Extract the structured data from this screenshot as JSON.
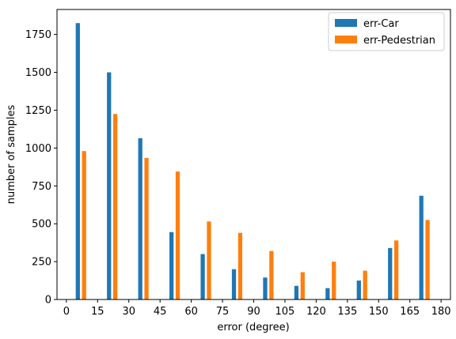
{
  "chart_data": {
    "type": "bar",
    "xlabel": "error (degree)",
    "ylabel": "number of samples",
    "xlim": [
      -4.5,
      184.5
    ],
    "ylim": [
      0,
      1915
    ],
    "xticks": [
      0,
      15,
      30,
      45,
      60,
      75,
      90,
      105,
      120,
      135,
      150,
      165,
      180
    ],
    "yticks": [
      0,
      250,
      500,
      750,
      1000,
      1250,
      1500,
      1750
    ],
    "bar_width": 2,
    "legend_position": "top-right",
    "series": [
      {
        "name": "err-Car",
        "color": "#1f77b4",
        "x": [
          5.5,
          20.5,
          35.5,
          50.5,
          65.5,
          80.5,
          95.5,
          110.5,
          125.5,
          140.5,
          155.5,
          170.5
        ],
        "values": [
          1825,
          1500,
          1065,
          445,
          300,
          200,
          145,
          90,
          75,
          125,
          340,
          685
        ]
      },
      {
        "name": "err-Pedestrian",
        "color": "#ff7f0e",
        "x": [
          8.5,
          23.5,
          38.5,
          53.5,
          68.5,
          83.5,
          98.5,
          113.5,
          128.5,
          143.5,
          158.5,
          173.5
        ],
        "values": [
          980,
          1225,
          935,
          845,
          515,
          440,
          320,
          180,
          250,
          190,
          390,
          525
        ]
      }
    ]
  }
}
